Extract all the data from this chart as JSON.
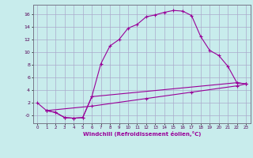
{
  "xlabel": "Windchill (Refroidissement éolien,°C)",
  "bg_color": "#c8ecec",
  "grid_color": "#aaaacc",
  "line_color": "#990099",
  "xlim": [
    -0.5,
    23.5
  ],
  "ylim": [
    -1.2,
    17.5
  ],
  "xticks": [
    0,
    1,
    2,
    3,
    4,
    5,
    6,
    7,
    8,
    9,
    10,
    11,
    12,
    13,
    14,
    15,
    16,
    17,
    18,
    19,
    20,
    21,
    22,
    23
  ],
  "yticks": [
    0,
    2,
    4,
    6,
    8,
    10,
    12,
    14,
    16
  ],
  "ytick_labels": [
    "-0",
    "2",
    "4",
    "6",
    "8",
    "10",
    "12",
    "14",
    "16"
  ],
  "line1_x": [
    0,
    1,
    2,
    3,
    4,
    5,
    6,
    7,
    8,
    9,
    10,
    11,
    12,
    13,
    14,
    15,
    16,
    17,
    18,
    19,
    20,
    21,
    22,
    23
  ],
  "line1_y": [
    2.0,
    0.8,
    0.5,
    -0.3,
    -0.4,
    -0.3,
    3.0,
    8.2,
    11.0,
    12.0,
    13.8,
    14.4,
    15.6,
    15.9,
    16.3,
    16.6,
    16.5,
    15.8,
    12.5,
    10.3,
    9.5,
    7.8,
    5.2,
    5.0
  ],
  "line2_x": [
    1,
    2,
    3,
    4,
    5,
    6,
    22,
    23
  ],
  "line2_y": [
    0.8,
    0.5,
    -0.3,
    -0.4,
    -0.3,
    3.0,
    5.2,
    5.0
  ],
  "line3_x": [
    1,
    6,
    12,
    17,
    22,
    23
  ],
  "line3_y": [
    0.8,
    1.5,
    2.7,
    3.7,
    4.7,
    5.0
  ]
}
